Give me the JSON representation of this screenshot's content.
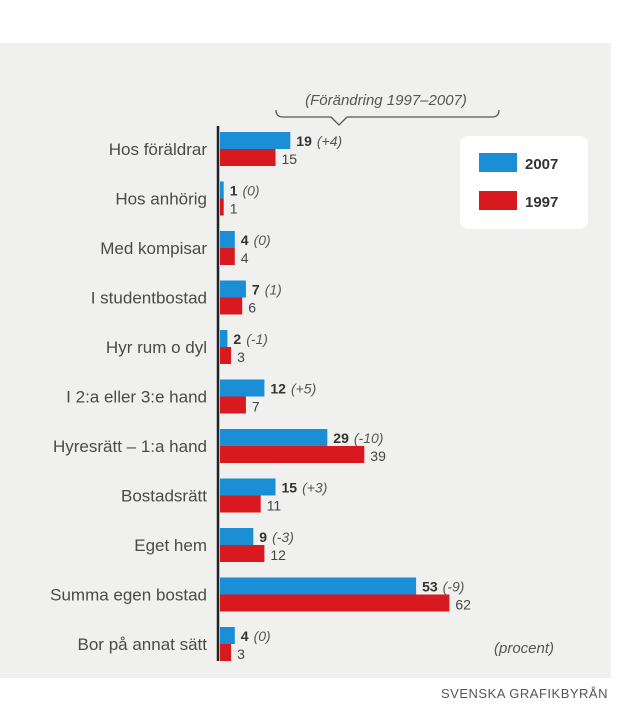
{
  "chart_data": {
    "type": "bar",
    "orientation": "horizontal",
    "categories": [
      "Hos föräldrar",
      "Hos anhörig",
      "Med kompisar",
      "I studentbostad",
      "Hyr rum o dyl",
      "I 2:a eller 3:e hand",
      "Hyresrätt – 1:a hand",
      "Bostadsrätt",
      "Eget hem",
      "Summa egen bostad",
      "Bor på annat sätt"
    ],
    "series": [
      {
        "name": "2007",
        "color": "#1a8fd6",
        "values": [
          19,
          1,
          4,
          7,
          2,
          12,
          29,
          15,
          9,
          53,
          4
        ]
      },
      {
        "name": "1997",
        "color": "#d81920",
        "values": [
          15,
          1,
          4,
          6,
          3,
          7,
          39,
          11,
          12,
          62,
          3
        ]
      }
    ],
    "change_labels": [
      "(+4)",
      "(0)",
      "(0)",
      "(1)",
      "(-1)",
      "(+5)",
      "(-10)",
      "(+3)",
      "(-3)",
      "(-9)",
      "(0)"
    ],
    "change_header": "(Förändring 1997–2007)",
    "unit_note": "(procent)",
    "legend_position": "top-right",
    "xlim": [
      0,
      70
    ],
    "grid": false
  },
  "credit": "SVENSKA GRAFIKBYRÅN"
}
